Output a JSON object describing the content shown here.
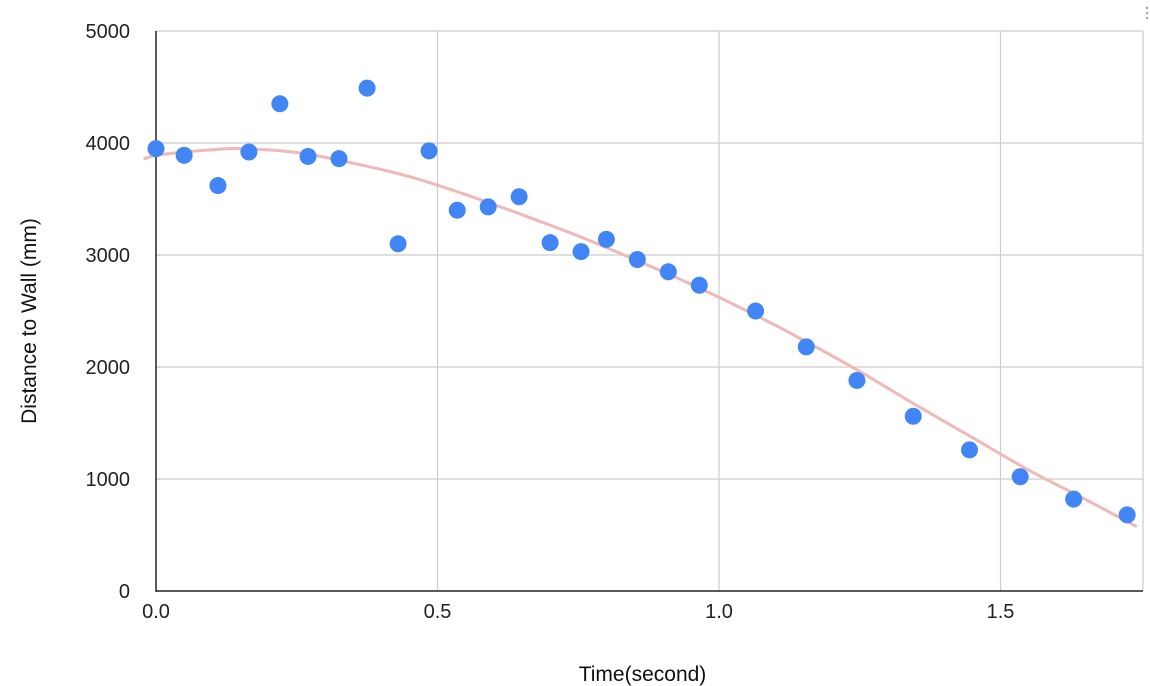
{
  "chart_data": {
    "type": "scatter",
    "title": "",
    "xlabel": "Time(second)",
    "ylabel": "Distance to Wall (mm)",
    "xlim": [
      0,
      1.75
    ],
    "ylim": [
      0,
      5000
    ],
    "x_ticks": [
      {
        "value": 0,
        "label": "0.0"
      },
      {
        "value": 0.5,
        "label": "0.5"
      },
      {
        "value": 1.0,
        "label": "1.0"
      },
      {
        "value": 1.5,
        "label": "1.5"
      }
    ],
    "y_ticks": [
      {
        "value": 0,
        "label": "0"
      },
      {
        "value": 1000,
        "label": "1000"
      },
      {
        "value": 2000,
        "label": "2000"
      },
      {
        "value": 3000,
        "label": "3000"
      },
      {
        "value": 4000,
        "label": "4000"
      },
      {
        "value": 5000,
        "label": "5000"
      }
    ],
    "grid": true,
    "legend": "none",
    "series": [
      {
        "color": "#4285F4",
        "points": [
          {
            "x": 0.0,
            "y": 3950
          },
          {
            "x": 0.05,
            "y": 3890
          },
          {
            "x": 0.11,
            "y": 3620
          },
          {
            "x": 0.165,
            "y": 3920
          },
          {
            "x": 0.22,
            "y": 4350
          },
          {
            "x": 0.27,
            "y": 3880
          },
          {
            "x": 0.325,
            "y": 3860
          },
          {
            "x": 0.375,
            "y": 4490
          },
          {
            "x": 0.43,
            "y": 3100
          },
          {
            "x": 0.485,
            "y": 3930
          },
          {
            "x": 0.535,
            "y": 3400
          },
          {
            "x": 0.59,
            "y": 3430
          },
          {
            "x": 0.645,
            "y": 3520
          },
          {
            "x": 0.7,
            "y": 3110
          },
          {
            "x": 0.755,
            "y": 3030
          },
          {
            "x": 0.8,
            "y": 3140
          },
          {
            "x": 0.855,
            "y": 2960
          },
          {
            "x": 0.91,
            "y": 2850
          },
          {
            "x": 0.965,
            "y": 2730
          },
          {
            "x": 1.065,
            "y": 2500
          },
          {
            "x": 1.155,
            "y": 2180
          },
          {
            "x": 1.245,
            "y": 1880
          },
          {
            "x": 1.345,
            "y": 1560
          },
          {
            "x": 1.445,
            "y": 1260
          },
          {
            "x": 1.535,
            "y": 1020
          },
          {
            "x": 1.63,
            "y": 820
          },
          {
            "x": 1.725,
            "y": 680
          }
        ]
      }
    ],
    "trendline": {
      "type": "polynomial",
      "color": "#F0B8B8",
      "points": [
        {
          "x": -0.02,
          "y": 3860
        },
        {
          "x": 0.0,
          "y": 3890
        },
        {
          "x": 0.05,
          "y": 3920
        },
        {
          "x": 0.1,
          "y": 3940
        },
        {
          "x": 0.15,
          "y": 3950
        },
        {
          "x": 0.25,
          "y": 3915
        },
        {
          "x": 0.35,
          "y": 3820
        },
        {
          "x": 0.45,
          "y": 3700
        },
        {
          "x": 0.55,
          "y": 3540
        },
        {
          "x": 0.65,
          "y": 3360
        },
        {
          "x": 0.75,
          "y": 3170
        },
        {
          "x": 0.85,
          "y": 2960
        },
        {
          "x": 0.95,
          "y": 2740
        },
        {
          "x": 1.05,
          "y": 2500
        },
        {
          "x": 1.15,
          "y": 2240
        },
        {
          "x": 1.25,
          "y": 1960
        },
        {
          "x": 1.35,
          "y": 1660
        },
        {
          "x": 1.45,
          "y": 1370
        },
        {
          "x": 1.55,
          "y": 1080
        },
        {
          "x": 1.65,
          "y": 820
        },
        {
          "x": 1.74,
          "y": 580
        }
      ]
    }
  }
}
